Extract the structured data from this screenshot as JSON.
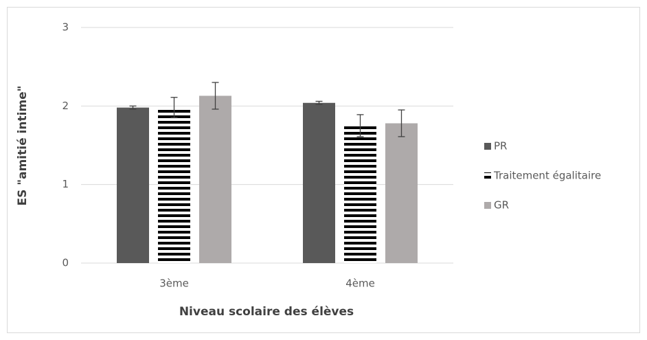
{
  "chart_data": {
    "type": "bar",
    "xlabel": "Niveau scolaire des élèves",
    "ylabel": "ES \"amitié intime\"",
    "categories": [
      "3ème",
      "4ème"
    ],
    "series": [
      {
        "name": "PR",
        "color": "#595959",
        "values": [
          1.98,
          2.04
        ],
        "errors": [
          0.02,
          0.02
        ]
      },
      {
        "name": "Traitement égalitaire",
        "color": "#000000",
        "pattern": "horizontal-stripes",
        "values": [
          1.98,
          1.75
        ],
        "errors": [
          0.13,
          0.14
        ]
      },
      {
        "name": "GR",
        "color": "#aeaaaa",
        "values": [
          2.13,
          1.78
        ],
        "errors": [
          0.17,
          0.17
        ]
      }
    ],
    "ylim": [
      0,
      3
    ],
    "yticks": [
      0,
      1,
      2,
      3
    ],
    "grid": true,
    "legend": "right"
  }
}
